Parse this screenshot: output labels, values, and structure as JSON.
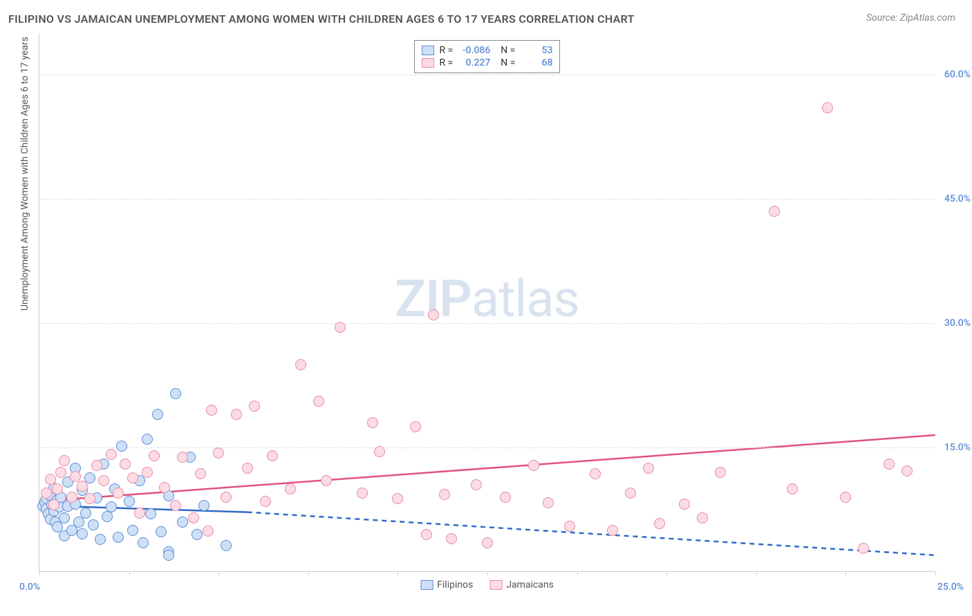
{
  "title": "FILIPINO VS JAMAICAN UNEMPLOYMENT AMONG WOMEN WITH CHILDREN AGES 6 TO 17 YEARS CORRELATION CHART",
  "source": "Source: ZipAtlas.com",
  "ylabel": "Unemployment Among Women with Children Ages 6 to 17 years",
  "watermark": {
    "bold": "ZIP",
    "rest": "atlas"
  },
  "series": [
    {
      "key": "filipinos",
      "label": "Filipinos",
      "fill": "#cfe0f6",
      "stroke": "#5b8cd6",
      "line_color": "#2f6ac9",
      "r_value": "-0.086",
      "n_value": "53",
      "trend": {
        "x1": 0.0,
        "y1": 8.0,
        "x2": 5.8,
        "y2": 7.2,
        "dashed": false
      },
      "trend_ext": {
        "x1": 5.8,
        "y1": 7.2,
        "x2": 25.0,
        "y2": 2.0,
        "dashed": true
      },
      "points": [
        [
          0.1,
          7.9
        ],
        [
          0.15,
          8.4
        ],
        [
          0.2,
          7.6
        ],
        [
          0.2,
          8.8
        ],
        [
          0.25,
          7.0
        ],
        [
          0.3,
          6.3
        ],
        [
          0.3,
          9.2
        ],
        [
          0.35,
          8.1
        ],
        [
          0.4,
          7.3
        ],
        [
          0.4,
          10.1
        ],
        [
          0.45,
          6.0
        ],
        [
          0.5,
          8.7
        ],
        [
          0.5,
          5.4
        ],
        [
          0.55,
          7.8
        ],
        [
          0.6,
          9.0
        ],
        [
          0.7,
          6.5
        ],
        [
          0.7,
          4.3
        ],
        [
          0.8,
          10.8
        ],
        [
          0.8,
          7.9
        ],
        [
          0.9,
          5.0
        ],
        [
          1.0,
          8.2
        ],
        [
          1.0,
          12.5
        ],
        [
          1.1,
          6.0
        ],
        [
          1.2,
          4.6
        ],
        [
          1.2,
          9.8
        ],
        [
          1.3,
          7.1
        ],
        [
          1.4,
          11.3
        ],
        [
          1.5,
          5.7
        ],
        [
          1.6,
          8.9
        ],
        [
          1.7,
          3.9
        ],
        [
          1.8,
          13.0
        ],
        [
          1.9,
          6.7
        ],
        [
          2.0,
          7.8
        ],
        [
          2.1,
          10.0
        ],
        [
          2.2,
          4.2
        ],
        [
          2.3,
          15.2
        ],
        [
          2.5,
          8.5
        ],
        [
          2.6,
          5.0
        ],
        [
          2.8,
          11.0
        ],
        [
          2.9,
          3.5
        ],
        [
          3.0,
          16.0
        ],
        [
          3.1,
          7.0
        ],
        [
          3.3,
          19.0
        ],
        [
          3.4,
          4.8
        ],
        [
          3.6,
          9.2
        ],
        [
          3.6,
          2.4
        ],
        [
          3.6,
          2.0
        ],
        [
          3.8,
          21.5
        ],
        [
          4.0,
          6.0
        ],
        [
          4.2,
          13.8
        ],
        [
          4.4,
          4.5
        ],
        [
          4.6,
          8.0
        ],
        [
          5.2,
          3.2
        ]
      ]
    },
    {
      "key": "jamaicans",
      "label": "Jamaicans",
      "fill": "#fbdce4",
      "stroke": "#e88aa5",
      "line_color": "#e0527e",
      "r_value": "0.227",
      "n_value": "68",
      "trend": {
        "x1": 0.0,
        "y1": 8.5,
        "x2": 25.0,
        "y2": 16.5,
        "dashed": false
      },
      "points": [
        [
          0.2,
          9.5
        ],
        [
          0.3,
          11.2
        ],
        [
          0.4,
          8.1
        ],
        [
          0.5,
          10.0
        ],
        [
          0.6,
          12.0
        ],
        [
          0.7,
          13.4
        ],
        [
          0.9,
          9.0
        ],
        [
          1.0,
          11.5
        ],
        [
          1.2,
          10.3
        ],
        [
          1.4,
          8.8
        ],
        [
          1.6,
          12.8
        ],
        [
          1.8,
          11.0
        ],
        [
          2.0,
          14.2
        ],
        [
          2.2,
          9.5
        ],
        [
          2.4,
          13.0
        ],
        [
          2.6,
          11.3
        ],
        [
          2.8,
          7.1
        ],
        [
          3.0,
          12.0
        ],
        [
          3.2,
          14.0
        ],
        [
          3.5,
          10.2
        ],
        [
          3.8,
          8.0
        ],
        [
          4.0,
          13.8
        ],
        [
          4.3,
          6.5
        ],
        [
          4.5,
          11.8
        ],
        [
          4.7,
          4.9
        ],
        [
          4.8,
          19.5
        ],
        [
          5.0,
          14.3
        ],
        [
          5.2,
          9.0
        ],
        [
          5.5,
          19.0
        ],
        [
          5.8,
          12.5
        ],
        [
          6.0,
          20.0
        ],
        [
          6.3,
          8.5
        ],
        [
          6.5,
          14.0
        ],
        [
          7.0,
          10.0
        ],
        [
          7.3,
          25.0
        ],
        [
          7.8,
          20.6
        ],
        [
          8.0,
          11.0
        ],
        [
          8.4,
          29.5
        ],
        [
          9.0,
          9.5
        ],
        [
          9.3,
          18.0
        ],
        [
          9.5,
          14.5
        ],
        [
          10.0,
          8.8
        ],
        [
          10.5,
          17.5
        ],
        [
          10.8,
          4.5
        ],
        [
          11.0,
          31.0
        ],
        [
          11.3,
          9.3
        ],
        [
          11.5,
          4.0
        ],
        [
          12.2,
          10.5
        ],
        [
          12.5,
          3.5
        ],
        [
          13.0,
          9.0
        ],
        [
          13.8,
          12.8
        ],
        [
          14.2,
          8.3
        ],
        [
          14.8,
          5.5
        ],
        [
          15.5,
          11.8
        ],
        [
          16.0,
          5.0
        ],
        [
          16.5,
          9.5
        ],
        [
          17.0,
          12.5
        ],
        [
          17.3,
          5.8
        ],
        [
          18.0,
          8.2
        ],
        [
          18.5,
          6.5
        ],
        [
          19.0,
          12.0
        ],
        [
          20.5,
          43.5
        ],
        [
          21.0,
          10.0
        ],
        [
          22.0,
          56.0
        ],
        [
          22.5,
          9.0
        ],
        [
          23.0,
          2.8
        ],
        [
          23.7,
          13.0
        ],
        [
          24.2,
          12.2
        ]
      ]
    }
  ],
  "axes": {
    "xlim": [
      0,
      25
    ],
    "ylim": [
      0,
      65
    ],
    "yticks": [
      15,
      30,
      45,
      60
    ],
    "ytick_labels": [
      "15.0%",
      "30.0%",
      "45.0%",
      "60.0%"
    ],
    "origin_label": "0.0%",
    "xmax_label": "25.0%",
    "xticks": [
      0,
      2.5,
      5,
      7.5,
      10,
      12.5,
      15,
      17.5,
      20,
      22.5,
      25
    ]
  },
  "marker_radius": 8,
  "line_width": 2.5,
  "background": "#ffffff",
  "grid_color": "#dddddd",
  "text_color": "#555555",
  "tick_color": "#5b8cd6"
}
